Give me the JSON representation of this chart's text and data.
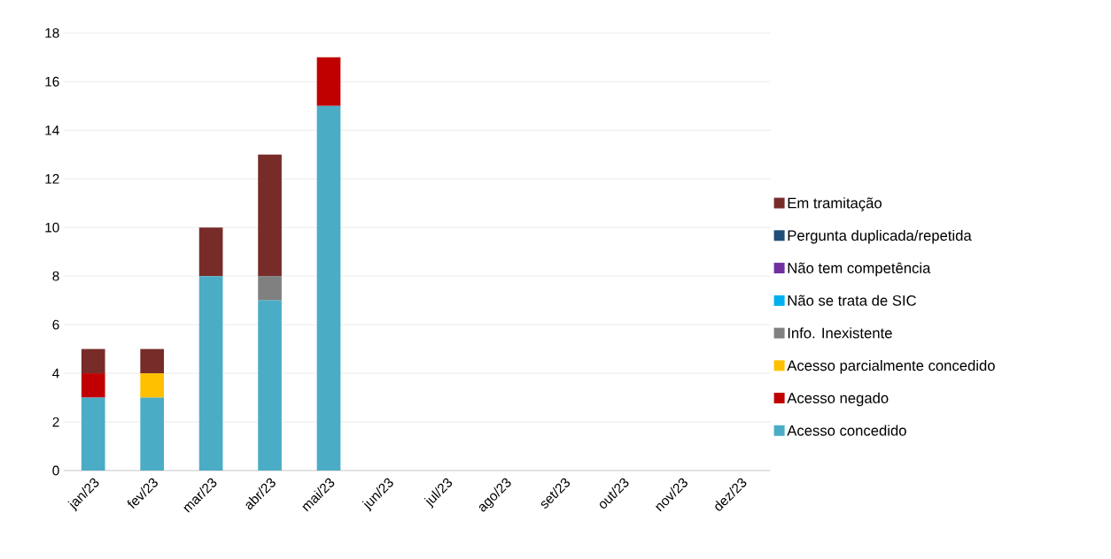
{
  "chart_data": {
    "type": "bar",
    "stacked": true,
    "categories": [
      "jan/23",
      "fev/23",
      "mar/23",
      "abr/23",
      "mai/23",
      "jun/23",
      "jul/23",
      "ago/23",
      "set/23",
      "out/23",
      "nov/23",
      "dez/23"
    ],
    "series": [
      {
        "name": "Acesso concedido",
        "color": "#4bacc6",
        "values": [
          3,
          3,
          8,
          7,
          15,
          null,
          null,
          null,
          null,
          null,
          null,
          null
        ]
      },
      {
        "name": "Acesso negado",
        "color": "#c00000",
        "values": [
          1,
          0,
          0,
          0,
          2,
          null,
          null,
          null,
          null,
          null,
          null,
          null
        ]
      },
      {
        "name": "Acesso parcialmente concedido",
        "color": "#ffc000",
        "values": [
          0,
          1,
          0,
          0,
          0,
          null,
          null,
          null,
          null,
          null,
          null,
          null
        ]
      },
      {
        "name": "Info. Inexistente",
        "color": "#808080",
        "values": [
          0,
          0,
          0,
          1,
          0,
          null,
          null,
          null,
          null,
          null,
          null,
          null
        ]
      },
      {
        "name": "Não se trata de SIC",
        "color": "#00b0f0",
        "values": [
          0,
          0,
          0,
          0,
          0,
          null,
          null,
          null,
          null,
          null,
          null,
          null
        ]
      },
      {
        "name": "Não tem competência",
        "color": "#7030a0",
        "values": [
          0,
          0,
          0,
          0,
          0,
          null,
          null,
          null,
          null,
          null,
          null,
          null
        ]
      },
      {
        "name": "Pergunta duplicada/repetida",
        "color": "#1f4e79",
        "values": [
          0,
          0,
          0,
          0,
          0,
          null,
          null,
          null,
          null,
          null,
          null,
          null
        ]
      },
      {
        "name": "Em tramitação",
        "color": "#772c2a",
        "values": [
          1,
          1,
          2,
          5,
          0,
          null,
          null,
          null,
          null,
          null,
          null,
          null
        ]
      }
    ],
    "ylim": [
      0,
      18
    ],
    "yticks": [
      0,
      2,
      4,
      6,
      8,
      10,
      12,
      14,
      16,
      18
    ],
    "grid": "y",
    "legend": "right"
  }
}
